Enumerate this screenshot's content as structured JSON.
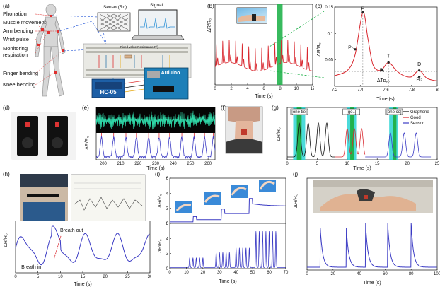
{
  "panel_labels": [
    "(a)",
    "(b)",
    "(c)",
    "(d)",
    "(e)",
    "(f)",
    "(g)",
    "(h)",
    "(i)",
    "(j)"
  ],
  "panel_a": {
    "body_labels": [
      "Phonation",
      "Muscle movement",
      "Arm bending",
      "Wrist pulse",
      "Monitoring respiration",
      "Finger bending",
      "Knee bending"
    ],
    "sensor_label": "Sensor(Rᴅ)",
    "signal_label": "Signal",
    "resistor_label": "Fixed value Resistance(Rᶠ)",
    "bt_label": "HC-05",
    "board_label": "Arduino"
  },
  "panel_c_annotations": [
    "P",
    "Pₚ",
    "T",
    "Pₜ",
    "D",
    "Pᴅ",
    "ΔTᴅᵥₚ"
  ],
  "panel_h_annotations": [
    "Breath out",
    "Breath in"
  ],
  "panel_g_boxes": [
    "[one tie]",
    "[go..]",
    "[one co]"
  ],
  "chart_data": [
    {
      "type": "line",
      "id": "b",
      "xlabel": "Time (s)",
      "ylabel": "ΔR/R₀",
      "xlim": [
        0,
        12
      ],
      "xticks": [
        0,
        2,
        4,
        6,
        8,
        10,
        12
      ],
      "yticks": [],
      "series": [
        {
          "color": "#d9282f",
          "pulse_period_s": 0.8
        }
      ],
      "highlight": {
        "color": "#22b24c",
        "x": [
          7.6,
          8.3
        ]
      }
    },
    {
      "type": "line",
      "id": "c",
      "xlabel": "Time (s)",
      "ylabel": "ΔR/R₀",
      "xlim": [
        7.2,
        8.0
      ],
      "ylim": [
        0,
        0.15
      ],
      "xticks": [
        7.2,
        7.4,
        7.6,
        7.8,
        8.0
      ],
      "yticks": [
        0.05,
        0.1,
        0.15
      ],
      "series": [
        {
          "color": "#d9282f",
          "x": [
            7.2,
            7.3,
            7.36,
            7.42,
            7.46,
            7.5,
            7.56,
            7.62,
            7.68,
            7.74,
            7.8,
            7.86,
            7.92,
            8.0
          ],
          "y": [
            0.02,
            0.03,
            0.06,
            0.14,
            0.09,
            0.04,
            0.03,
            0.045,
            0.03,
            0.02,
            0.018,
            0.03,
            0.015,
            0.01
          ]
        }
      ]
    },
    {
      "type": "line",
      "id": "e",
      "xlabel": "Time (s)",
      "ylabel": "ΔR/R₀",
      "xlim": [
        196,
        264
      ],
      "xticks": [
        200,
        210,
        220,
        230,
        240,
        250,
        260
      ],
      "yticks": [],
      "series": [
        {
          "color": "#3b3bc4"
        },
        {
          "color": "#2fd5a6"
        }
      ]
    },
    {
      "type": "line",
      "id": "g",
      "xlabel": "Time (s)",
      "ylabel": "ΔR/R₀",
      "xlim": [
        0,
        25
      ],
      "xticks": [
        0,
        5,
        10,
        15,
        20,
        25
      ],
      "yticks": [],
      "series": [
        {
          "name": "Graphene",
          "color": "#111111"
        },
        {
          "name": "Good",
          "color": "#d9282f"
        },
        {
          "name": "Sensor",
          "color": "#3b3bc4"
        }
      ]
    },
    {
      "type": "line",
      "id": "h",
      "xlabel": "Time (s)",
      "ylabel": "ΔR/R₀",
      "xlim": [
        0,
        30
      ],
      "xticks": [
        0,
        5,
        10,
        15,
        20,
        25,
        30
      ],
      "yticks": [],
      "series": [
        {
          "color": "#3b3bc4"
        }
      ]
    },
    {
      "type": "line",
      "id": "i-top",
      "ylabel": "ΔR/R₀",
      "xlim": [
        0,
        70
      ],
      "ylim": [
        0,
        6
      ],
      "yticks": [
        0,
        2,
        4,
        6
      ],
      "series": [
        {
          "color": "#3b3bc4"
        }
      ]
    },
    {
      "type": "line",
      "id": "i-bottom",
      "xlabel": "Time (s)",
      "ylabel": "ΔR/R₀",
      "xlim": [
        0,
        70
      ],
      "ylim": [
        0,
        6
      ],
      "xticks": [
        0,
        10,
        20,
        30,
        40,
        50,
        60,
        70
      ],
      "yticks": [
        0,
        2,
        4,
        6
      ],
      "series": [
        {
          "color": "#3b3bc4"
        }
      ]
    },
    {
      "type": "line",
      "id": "j",
      "xlabel": "Time (s)",
      "ylabel": "ΔR/R₀",
      "xlim": [
        0,
        100
      ],
      "xticks": [
        0,
        20,
        40,
        60,
        80,
        100
      ],
      "yticks": [],
      "series": [
        {
          "color": "#3b3bc4",
          "peaks_s": [
            10,
            30,
            45,
            62,
            80
          ]
        }
      ]
    }
  ]
}
